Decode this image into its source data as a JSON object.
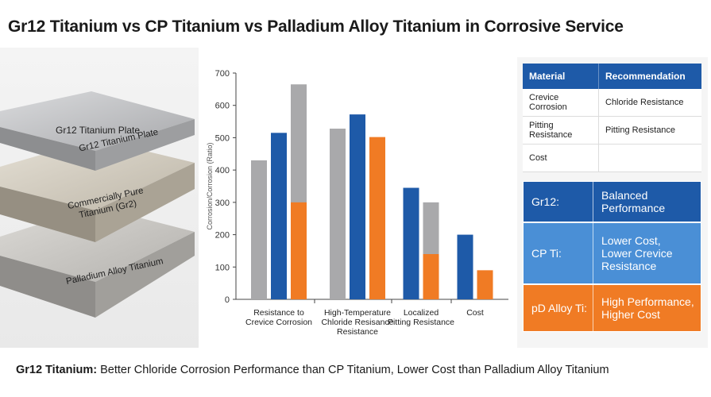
{
  "title": "Gr12 Titanium vs CP Titanium vs Palladium Alloy Titanium in Corrosive Service",
  "plates": {
    "top_label": "Gr12 Titanium Plate",
    "items": [
      {
        "label": "Gr12 Titanium Plate",
        "color": "#b9babc"
      },
      {
        "label": "Commercially Pure\nTitanium (Gr2)",
        "color": "#cfc9bd"
      },
      {
        "label": "Palladium Alloy Titanium",
        "color": "#c4c2bf"
      }
    ]
  },
  "chart_data": {
    "type": "bar",
    "ylabel": "Corrosion/Corrosion (Ratio)",
    "ylim": [
      0,
      700
    ],
    "yticks": [
      0,
      100,
      200,
      300,
      400,
      500,
      600,
      700
    ],
    "groups": [
      {
        "label": [
          "Resistance to",
          "Crevice Corrosion"
        ],
        "bars": [
          {
            "value": 430,
            "color": "#a9a9ab"
          },
          {
            "value": 515,
            "color": "#1e5aa8"
          },
          {
            "value": 665,
            "color": "#a9a9ab",
            "inner_value": 300,
            "inner_color": "#f07b24"
          }
        ]
      },
      {
        "label": [
          "High-Temperature",
          "Chloride Resisance",
          "Resistance"
        ],
        "bars": [
          {
            "value": 528,
            "color": "#a9a9ab"
          },
          {
            "value": 572,
            "color": "#1e5aa8"
          },
          {
            "value": 502,
            "color": "#f07b24"
          }
        ]
      },
      {
        "label": [
          "Localized",
          "Pitting Resistance"
        ],
        "bars": [
          {
            "value": 345,
            "color": "#1e5aa8"
          },
          {
            "value": 300,
            "color": "#a9a9ab",
            "inner_value": 140,
            "inner_color": "#f07b24"
          }
        ]
      },
      {
        "label": [
          "Cost"
        ],
        "bars": [
          {
            "value": 200,
            "color": "#1e5aa8"
          },
          {
            "value": 90,
            "color": "#f07b24"
          }
        ]
      }
    ]
  },
  "table": {
    "headers": [
      "Material",
      "Recommendation"
    ],
    "rows": [
      [
        "Crevice Corrosion",
        "Chloride Resistance"
      ],
      [
        "Pitting Resistance",
        "Pitting Resistance"
      ],
      [
        "Cost",
        ""
      ]
    ]
  },
  "cards": [
    {
      "label": "Gr12:",
      "value": "Balanced\nPerformance",
      "color": "#1e5aa8"
    },
    {
      "label": "CP Ti:",
      "value": "Lower Cost,\nLower Crevice\nResistance",
      "color": "#4a8fd6"
    },
    {
      "label": "pD Alloy Ti:",
      "value": "High Performance,\nHigher Cost",
      "color": "#f07b24"
    }
  ],
  "caption": {
    "bold": "Gr12 Titanium:",
    "text": " Better Chloride Corrosion Performance than CP Titanium, Lower Cost than Palladium Alloy Titanium"
  }
}
